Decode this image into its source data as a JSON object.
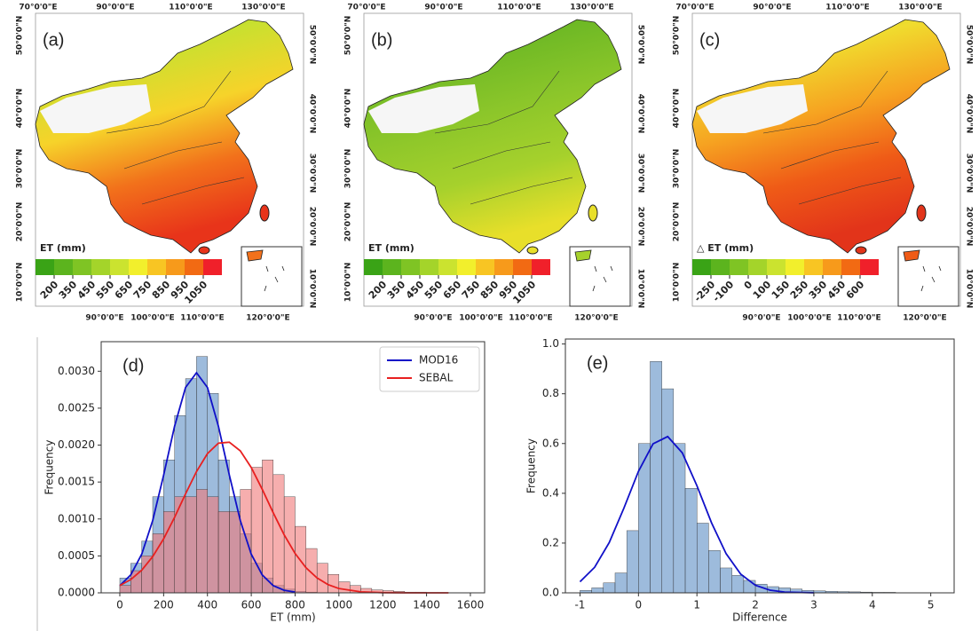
{
  "chart_data": [
    {
      "type": "map",
      "panel_label": "(a)",
      "top_labels": [
        "70°0'0\"E",
        "90°0'0\"E",
        "110°0'0\"E",
        "130°0'0\"E"
      ],
      "bottom_labels": [
        "90°0'0\"E",
        "100°0'0\"E",
        "110°0'0\"E",
        "120°0'0\"E"
      ],
      "left_labels": [
        "50°0'0\"N",
        "40°0'0\"N",
        "30°0'0\"N",
        "20°0'0\"N",
        "10°0'0\"N"
      ],
      "right_labels": [
        "50°0'0\"N",
        "40°0'0\"N",
        "30°0'0\"N",
        "20°0'0\"N",
        "10°0'0\"N"
      ],
      "map_colors": [
        "#7cc12a",
        "#c9e02f",
        "#f6d32a",
        "#f2711b",
        "#e8341a"
      ],
      "colorbar": {
        "label": "ET (mm)",
        "ticks": [
          200,
          350,
          450,
          550,
          650,
          750,
          850,
          950,
          1050
        ],
        "colors": [
          "#3aa316",
          "#5cb41e",
          "#7fc424",
          "#a4d42a",
          "#cbe32f",
          "#f2ef2c",
          "#f8c523",
          "#f79a1b",
          "#f26a13",
          "#f0202a"
        ]
      }
    },
    {
      "type": "map",
      "panel_label": "(b)",
      "top_labels": [
        "70°0'0\"E",
        "90°0'0\"E",
        "110°0'0\"E",
        "130°0'0\"E"
      ],
      "bottom_labels": [
        "90°0'0\"E",
        "100°0'0\"E",
        "110°0'0\"E",
        "120°0'0\"E"
      ],
      "left_labels": [
        "50°0'0\"N",
        "40°0'0\"N",
        "30°0'0\"N",
        "20°0'0\"N",
        "10°0'0\"N"
      ],
      "right_labels": [
        "50°0'0\"N",
        "40°0'0\"N",
        "30°0'0\"N",
        "20°0'0\"N",
        "10°0'0\"N"
      ],
      "map_colors": [
        "#4ea81e",
        "#6fb925",
        "#8cc62a",
        "#a6d12c",
        "#e8df2a"
      ],
      "colorbar": {
        "label": "ET (mm)",
        "ticks": [
          200,
          350,
          450,
          550,
          650,
          750,
          850,
          950,
          1050
        ],
        "colors": [
          "#3aa316",
          "#5cb41e",
          "#7fc424",
          "#a4d42a",
          "#cbe32f",
          "#f2ef2c",
          "#f8c523",
          "#f79a1b",
          "#f26a13",
          "#f0202a"
        ]
      }
    },
    {
      "type": "map",
      "panel_label": "(c)",
      "top_labels": [
        "70°0'0\"E",
        "90°0'0\"E",
        "110°0'0\"E",
        "130°0'0\"E"
      ],
      "bottom_labels": [
        "90°0'0\"E",
        "100°0'0\"E",
        "110°0'0\"E",
        "120°0'0\"E"
      ],
      "left_labels": [
        "50°0'0\"N",
        "40°0'0\"N",
        "30°0'0\"N",
        "20°0'0\"N",
        "10°0'0\"N"
      ],
      "right_labels": [
        "50°0'0\"N",
        "40°0'0\"N",
        "30°0'0\"N",
        "20°0'0\"N",
        "10°0'0\"N"
      ],
      "map_colors": [
        "#8ec82b",
        "#f0dc2e",
        "#f6a321",
        "#ef5b17",
        "#e2341a"
      ],
      "colorbar": {
        "label": "△ ET (mm)",
        "ticks": [
          -250,
          -100,
          0,
          100,
          150,
          250,
          350,
          450,
          600
        ],
        "colors": [
          "#3aa316",
          "#5cb41e",
          "#7fc424",
          "#a4d42a",
          "#cbe32f",
          "#f2ef2c",
          "#f8c523",
          "#f79a1b",
          "#f26a13",
          "#f0202a"
        ]
      }
    },
    {
      "type": "histogram",
      "panel_label": "(d)",
      "xlabel": "ET (mm)",
      "ylabel": "Frequency",
      "xlim": [
        -85,
        1665
      ],
      "xticks": [
        0,
        200,
        400,
        600,
        800,
        1000,
        1200,
        1400,
        1600
      ],
      "ylim": [
        0,
        0.0034
      ],
      "yticks": [
        {
          "value": 0,
          "label": "0.0000"
        },
        {
          "value": 0.0005,
          "label": "0.0005"
        },
        {
          "value": 0.001,
          "label": "0.0010"
        },
        {
          "value": 0.0015,
          "label": "0.0015"
        },
        {
          "value": 0.002,
          "label": "0.0020"
        },
        {
          "value": 0.0025,
          "label": "0.0025"
        },
        {
          "value": 0.003,
          "label": "0.0030"
        }
      ],
      "legend": "upper right",
      "histograms": [
        {
          "color": "#5b8ec4",
          "bins": [
            0,
            50,
            100,
            150,
            200,
            250,
            300,
            350,
            400,
            450,
            500,
            550,
            600,
            650,
            700,
            750,
            800,
            850,
            900
          ],
          "counts": [
            0.0002,
            0.0004,
            0.0007,
            0.0013,
            0.0018,
            0.0024,
            0.0029,
            0.0032,
            0.0027,
            0.0018,
            0.0013,
            0.0008,
            0.0004,
            0.0002,
            0.0001,
            5e-05,
            2e-05,
            1e-05
          ]
        },
        {
          "color": "#f07878",
          "bins": [
            0,
            50,
            100,
            150,
            200,
            250,
            300,
            350,
            400,
            450,
            500,
            550,
            600,
            650,
            700,
            750,
            800,
            850,
            900,
            950,
            1000,
            1050,
            1100,
            1150,
            1200,
            1250,
            1300,
            1350,
            1400,
            1450,
            1500
          ],
          "counts": [
            0.0001,
            0.0003,
            0.0005,
            0.0008,
            0.0011,
            0.0013,
            0.0013,
            0.0014,
            0.0013,
            0.0011,
            0.0011,
            0.0014,
            0.0017,
            0.0018,
            0.0016,
            0.0013,
            0.0009,
            0.0006,
            0.0004,
            0.00025,
            0.00015,
            0.0001,
            6e-05,
            4e-05,
            3e-05,
            2e-05,
            1e-05,
            1e-05,
            5e-06,
            5e-06
          ]
        }
      ],
      "series": [
        {
          "name": "MOD16",
          "color": "#1010c8",
          "x": [
            0,
            50,
            100,
            150,
            200,
            250,
            300,
            350,
            400,
            450,
            500,
            550,
            600,
            650,
            700,
            750,
            800
          ],
          "values": [
            9.8e-05,
            0.000243,
            0.000523,
            0.000978,
            0.001593,
            0.002256,
            0.00278,
            0.00298,
            0.00278,
            0.002256,
            0.001593,
            0.000978,
            0.000523,
            0.000243,
            9.8e-05,
            3.46e-05,
            1.06e-05
          ]
        },
        {
          "name": "SEBAL",
          "color": "#e82020",
          "x": [
            0,
            50,
            100,
            150,
            200,
            250,
            300,
            350,
            400,
            450,
            500,
            550,
            600,
            650,
            700,
            750,
            800,
            850,
            900,
            950,
            1000,
            1100,
            1200,
            1300,
            1400,
            1500
          ],
          "values": [
            9.9e-05,
            0.00018,
            0.000307,
            0.00049,
            0.000731,
            0.001023,
            0.001339,
            0.001641,
            0.001885,
            0.002026,
            0.002039,
            0.001922,
            0.001696,
            0.001402,
            0.001085,
            0.000786,
            0.000533,
            0.000339,
            0.000202,
            0.000112,
            5.86e-05,
            1.31e-05,
            2.3e-06,
            3e-07,
            0,
            0
          ]
        }
      ]
    },
    {
      "type": "histogram",
      "panel_label": "(e)",
      "xlabel": "Difference",
      "ylabel": "Frequency",
      "xlim": [
        -1.25,
        5.4
      ],
      "xticks": [
        -1,
        0,
        1,
        2,
        3,
        4,
        5
      ],
      "ylim": [
        0,
        1.02
      ],
      "yticks": [
        {
          "value": 0,
          "label": "0.0"
        },
        0.2,
        0.4,
        0.6,
        0.8,
        {
          "value": 1,
          "label": "1.0"
        }
      ],
      "histograms": [
        {
          "color": "#5b8ec4",
          "bins": [
            -1,
            -0.8,
            -0.6,
            -0.4,
            -0.2,
            0,
            0.2,
            0.4,
            0.6,
            0.8,
            1,
            1.2,
            1.4,
            1.6,
            1.8,
            2,
            2.2,
            2.4,
            2.6,
            2.8,
            3,
            3.2,
            3.4,
            3.6,
            3.8,
            4,
            4.2,
            4.4,
            4.6,
            4.8,
            5
          ],
          "counts": [
            0.01,
            0.02,
            0.04,
            0.08,
            0.25,
            0.6,
            0.93,
            0.82,
            0.6,
            0.42,
            0.28,
            0.17,
            0.1,
            0.07,
            0.05,
            0.035,
            0.025,
            0.02,
            0.015,
            0.01,
            0.008,
            0.006,
            0.005,
            0.004,
            0.003,
            0.002,
            0.002,
            0.001,
            0.001,
            0.001
          ]
        }
      ],
      "series": [
        {
          "color": "#1010c8",
          "x": [
            -1,
            -0.75,
            -0.5,
            -0.25,
            0,
            0.25,
            0.5,
            0.75,
            1,
            1.25,
            1.5,
            1.75,
            2,
            2.25,
            2.5,
            3
          ],
          "values": [
            0.0446,
            0.1027,
            0.2021,
            0.3399,
            0.4883,
            0.5991,
            0.628,
            0.5625,
            0.4304,
            0.2814,
            0.1571,
            0.075,
            0.0306,
            0.0107,
            0.0032,
            0.0002
          ]
        }
      ]
    }
  ]
}
